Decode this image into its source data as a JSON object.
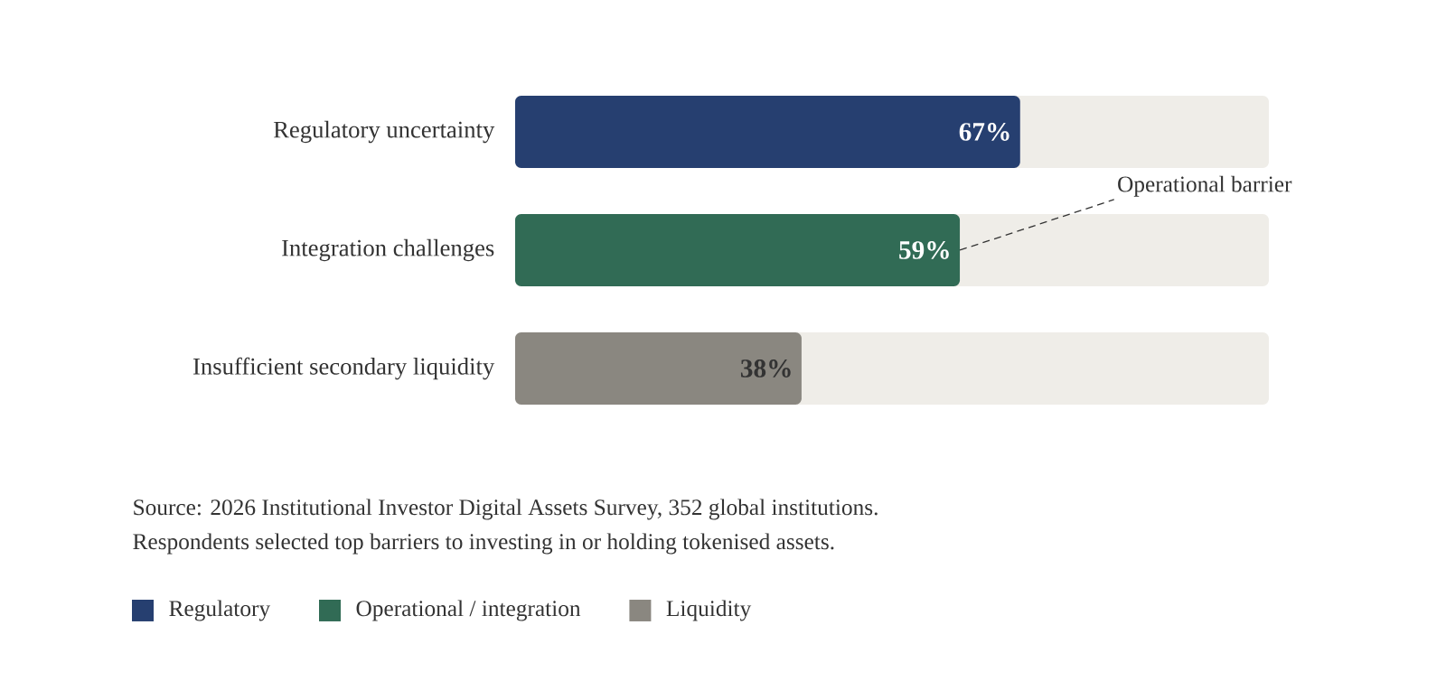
{
  "chart_data": {
    "type": "bar",
    "orientation": "horizontal",
    "categories": [
      "Regulatory uncertainty",
      "Integration challenges",
      "Insufficient secondary liquidity"
    ],
    "series": [
      {
        "name": "Regulatory",
        "color": "#263f70",
        "values": [
          67,
          null,
          null
        ],
        "value_labels": [
          "67%",
          null,
          null
        ]
      },
      {
        "name": "Operational / integration",
        "color": "#316b55",
        "values": [
          null,
          59,
          null
        ],
        "value_labels": [
          null,
          "59%",
          null
        ]
      },
      {
        "name": "Liquidity",
        "color": "#8a8780",
        "values": [
          null,
          null,
          38
        ],
        "value_labels": [
          null,
          null,
          "38%"
        ]
      }
    ],
    "xlim": [
      0,
      100
    ],
    "tick_labels": "y",
    "legend": "bottom left",
    "annotations": [
      {
        "text": "Operational barrier",
        "x": 59,
        "y": "Integration challenges"
      },
      "Source: 2026 Institutional Investor Digital Assets Survey, 352 global institutions.",
      "Respondents selected top barriers to investing in or holding tokenised assets."
    ]
  }
}
